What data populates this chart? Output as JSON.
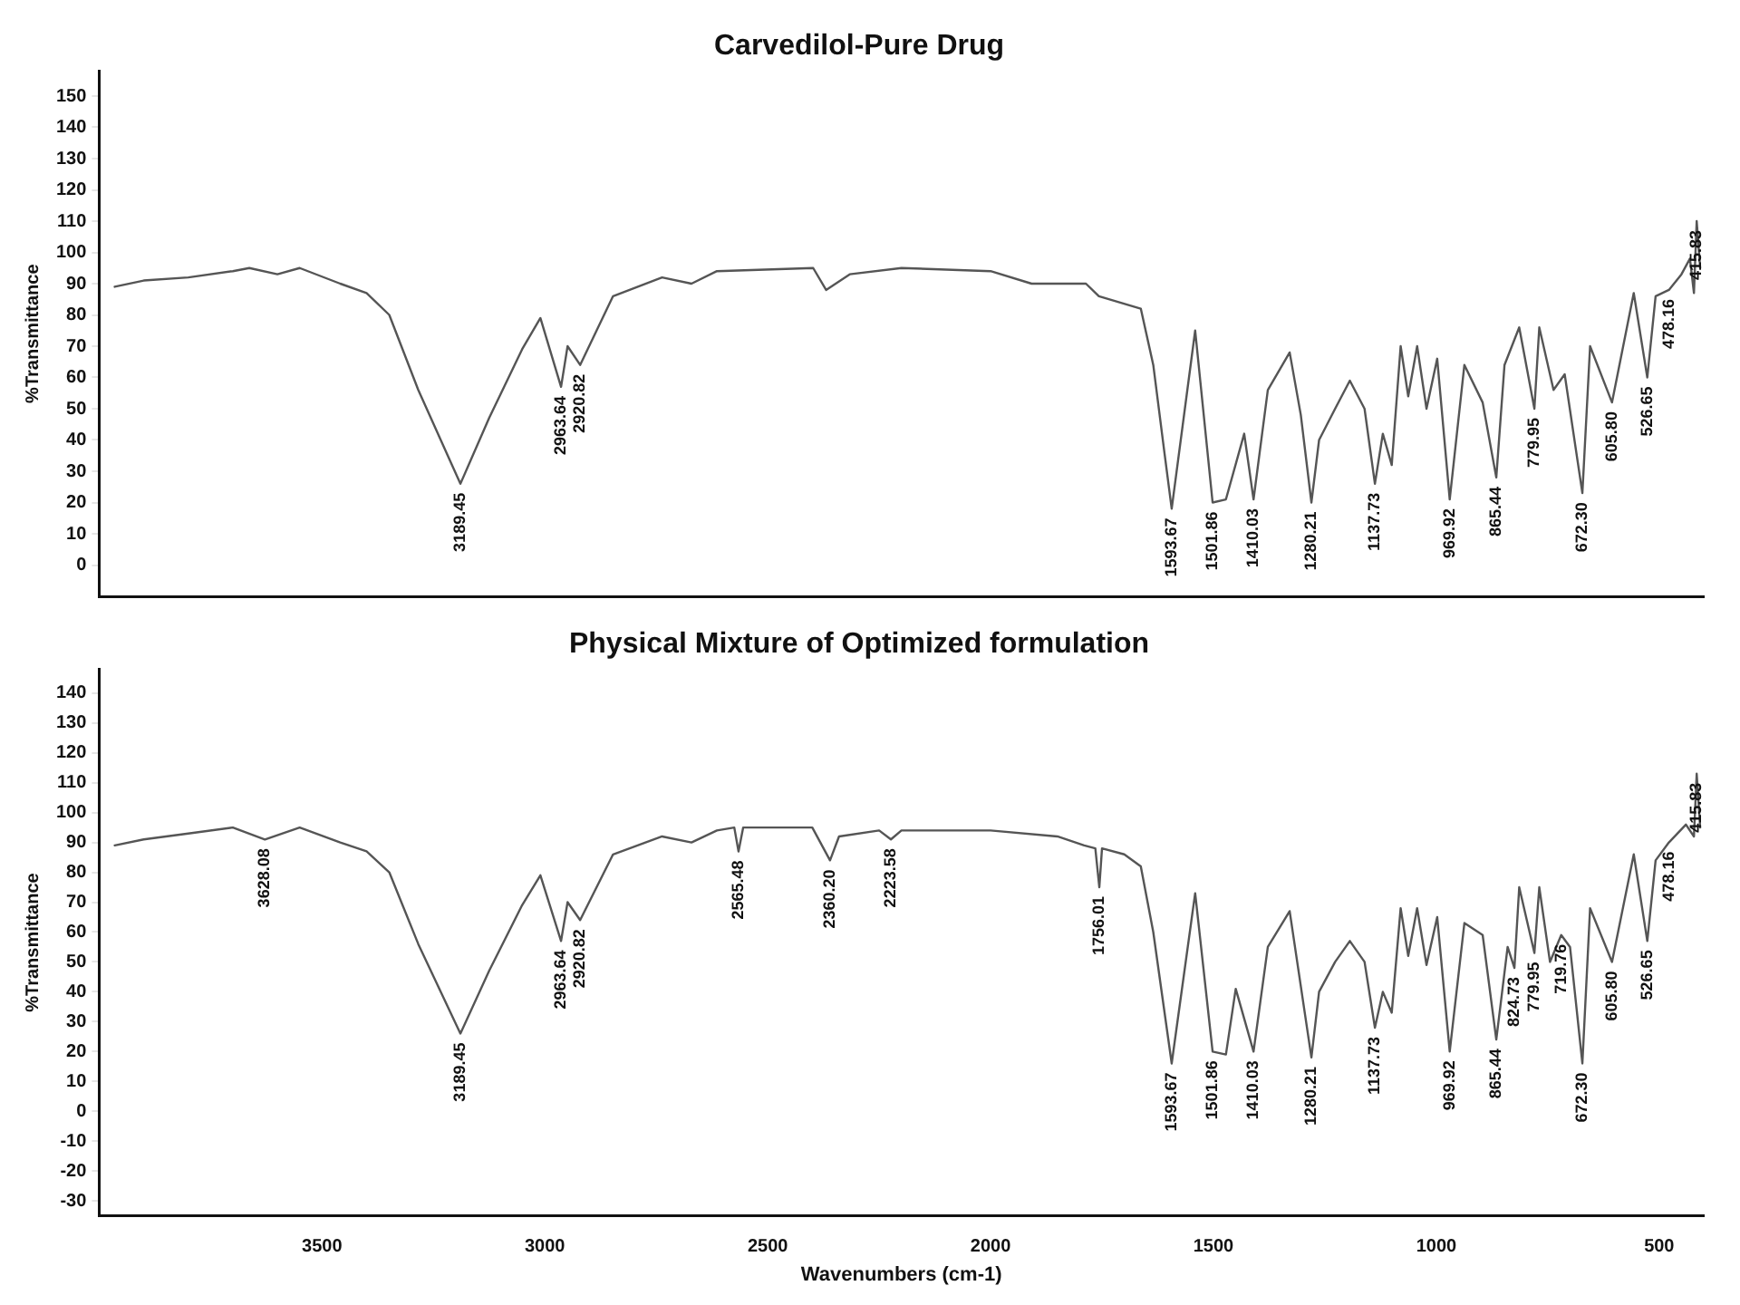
{
  "chart_data": [
    {
      "type": "line",
      "title": "Carvedilol-Pure Drug",
      "ylabel": "%Transmittance",
      "xlim": [
        4000,
        400
      ],
      "xticks": [
        3500,
        3000,
        2500,
        2000,
        1500,
        1000,
        500
      ],
      "ylim": [
        -10,
        158
      ],
      "yticks": [
        0,
        10,
        20,
        30,
        40,
        50,
        60,
        70,
        80,
        90,
        100,
        110,
        120,
        130,
        140,
        150
      ],
      "tick_labels": "y",
      "marker": "none",
      "x": [
        3965,
        3900,
        3800,
        3700,
        3663,
        3600,
        3550,
        3459,
        3400,
        3349,
        3284,
        3189.45,
        3125,
        3051,
        3010,
        2963.64,
        2949,
        2920.82,
        2847,
        2737,
        2671,
        2614,
        2398,
        2369,
        2316,
        2200,
        2000,
        1908,
        1786,
        1757,
        1663,
        1635,
        1610,
        1593.67,
        1541,
        1501.86,
        1472,
        1431,
        1410.03,
        1378,
        1329,
        1304,
        1280.21,
        1263,
        1227,
        1194,
        1161,
        1137.73,
        1120,
        1100,
        1080,
        1063,
        1043,
        1022,
        998,
        969.92,
        937,
        896,
        865.44,
        847,
        814,
        779.95,
        769,
        737,
        712,
        672.3,
        655,
        605.8,
        557,
        526.65,
        508,
        478.16,
        450,
        431,
        422,
        415.83,
        408
      ],
      "series": [
        {
          "color": "#555555",
          "values": [
            89,
            91,
            92,
            94,
            95,
            93,
            95,
            90,
            87,
            80,
            56,
            26,
            47,
            69,
            79,
            57,
            70,
            64,
            86,
            92,
            90,
            94,
            95,
            88,
            93,
            95,
            94,
            90,
            90,
            86,
            82,
            64,
            36,
            18,
            75,
            20,
            21,
            42,
            21,
            56,
            68,
            48,
            20,
            40,
            50,
            59,
            50,
            26,
            42,
            32,
            70,
            54,
            70,
            50,
            66,
            21,
            64,
            52,
            28,
            64,
            76,
            50,
            76,
            56,
            61,
            23,
            70,
            52,
            87,
            60,
            86,
            88,
            93,
            98,
            87,
            110,
            95
          ]
        }
      ],
      "annotations": [
        {
          "text": "3189.45",
          "x": 3189.45,
          "y": 26
        },
        {
          "text": "2963.64",
          "x": 2963.64,
          "y": 57
        },
        {
          "text": "2920.82",
          "x": 2920.82,
          "y": 64
        },
        {
          "text": "1593.67",
          "x": 1593.67,
          "y": 18
        },
        {
          "text": "1501.86",
          "x": 1501.86,
          "y": 20
        },
        {
          "text": "1410.03",
          "x": 1410.03,
          "y": 21
        },
        {
          "text": "1280.21",
          "x": 1280.21,
          "y": 20
        },
        {
          "text": "1137.73",
          "x": 1137.73,
          "y": 26
        },
        {
          "text": "969.92",
          "x": 969.92,
          "y": 21
        },
        {
          "text": "865.44",
          "x": 865.44,
          "y": 28
        },
        {
          "text": "779.95",
          "x": 779.95,
          "y": 50
        },
        {
          "text": "672.30",
          "x": 672.3,
          "y": 23
        },
        {
          "text": "605.80",
          "x": 605.8,
          "y": 52
        },
        {
          "text": "526.65",
          "x": 526.65,
          "y": 60
        },
        {
          "text": "478.16",
          "x": 478.16,
          "y": 88
        },
        {
          "text": "415.83",
          "x": 415.83,
          "y": 110
        }
      ]
    },
    {
      "type": "line",
      "title": "Physical Mixture of Optimized formulation",
      "xlabel": "Wavenumbers (cm-1)",
      "ylabel": "%Transmittance",
      "xlim": [
        4000,
        400
      ],
      "xticks": [
        3500,
        3000,
        2500,
        2000,
        1500,
        1000,
        500
      ],
      "ylim": [
        -35,
        148
      ],
      "yticks": [
        -30,
        -20,
        -10,
        0,
        10,
        20,
        30,
        40,
        50,
        60,
        70,
        80,
        90,
        100,
        110,
        120,
        130,
        140
      ],
      "marker": "none",
      "x": [
        3965,
        3900,
        3800,
        3700,
        3628.08,
        3550,
        3459,
        3400,
        3349,
        3284,
        3189.45,
        3125,
        3051,
        3010,
        2963.64,
        2949,
        2920.82,
        2847,
        2737,
        2671,
        2614,
        2575,
        2565.48,
        2555,
        2400,
        2360.2,
        2340,
        2250,
        2223.58,
        2200,
        2000,
        1850,
        1790,
        1765,
        1756.01,
        1750,
        1700,
        1663,
        1635,
        1593.67,
        1541,
        1501.86,
        1472,
        1450,
        1410.03,
        1378,
        1329,
        1280.21,
        1263,
        1227,
        1194,
        1161,
        1137.73,
        1120,
        1100,
        1080,
        1063,
        1043,
        1022,
        998,
        969.92,
        937,
        896,
        865.44,
        840,
        824.73,
        814,
        779.95,
        769,
        745,
        719.76,
        700,
        672.3,
        655,
        605.8,
        557,
        526.65,
        508,
        478.16,
        440,
        422,
        415.83,
        408
      ],
      "series": [
        {
          "color": "#555555",
          "values": [
            89,
            91,
            93,
            95,
            91,
            95,
            90,
            87,
            80,
            56,
            26,
            47,
            69,
            79,
            57,
            70,
            64,
            86,
            92,
            90,
            94,
            95,
            87,
            95,
            95,
            84,
            92,
            94,
            91,
            94,
            94,
            92,
            89,
            88,
            75,
            88,
            86,
            82,
            60,
            16,
            73,
            20,
            19,
            41,
            20,
            55,
            67,
            18,
            40,
            50,
            57,
            50,
            28,
            40,
            33,
            68,
            52,
            68,
            49,
            65,
            20,
            63,
            59,
            24,
            55,
            48,
            75,
            53,
            75,
            50,
            59,
            55,
            16,
            68,
            50,
            86,
            57,
            84,
            90,
            96,
            92,
            113,
            95
          ]
        }
      ],
      "annotations": [
        {
          "text": "3628.08",
          "x": 3628.08,
          "y": 91
        },
        {
          "text": "3189.45",
          "x": 3189.45,
          "y": 26
        },
        {
          "text": "2963.64",
          "x": 2963.64,
          "y": 57
        },
        {
          "text": "2920.82",
          "x": 2920.82,
          "y": 64
        },
        {
          "text": "2565.48",
          "x": 2565.48,
          "y": 87
        },
        {
          "text": "2360.20",
          "x": 2360.2,
          "y": 84
        },
        {
          "text": "2223.58",
          "x": 2223.58,
          "y": 91
        },
        {
          "text": "1756.01",
          "x": 1756.01,
          "y": 75
        },
        {
          "text": "1593.67",
          "x": 1593.67,
          "y": 16
        },
        {
          "text": "1501.86",
          "x": 1501.86,
          "y": 20
        },
        {
          "text": "1410.03",
          "x": 1410.03,
          "y": 20
        },
        {
          "text": "1280.21",
          "x": 1280.21,
          "y": 18
        },
        {
          "text": "1137.73",
          "x": 1137.73,
          "y": 28
        },
        {
          "text": "969.92",
          "x": 969.92,
          "y": 20
        },
        {
          "text": "865.44",
          "x": 865.44,
          "y": 24
        },
        {
          "text": "824.73",
          "x": 824.73,
          "y": 48
        },
        {
          "text": "779.95",
          "x": 779.95,
          "y": 53
        },
        {
          "text": "719.76",
          "x": 719.76,
          "y": 59
        },
        {
          "text": "672.30",
          "x": 672.3,
          "y": 16
        },
        {
          "text": "605.80",
          "x": 605.8,
          "y": 50
        },
        {
          "text": "526.65",
          "x": 526.65,
          "y": 57
        },
        {
          "text": "478.16",
          "x": 478.16,
          "y": 90
        },
        {
          "text": "415.83",
          "x": 415.83,
          "y": 113
        }
      ]
    }
  ]
}
